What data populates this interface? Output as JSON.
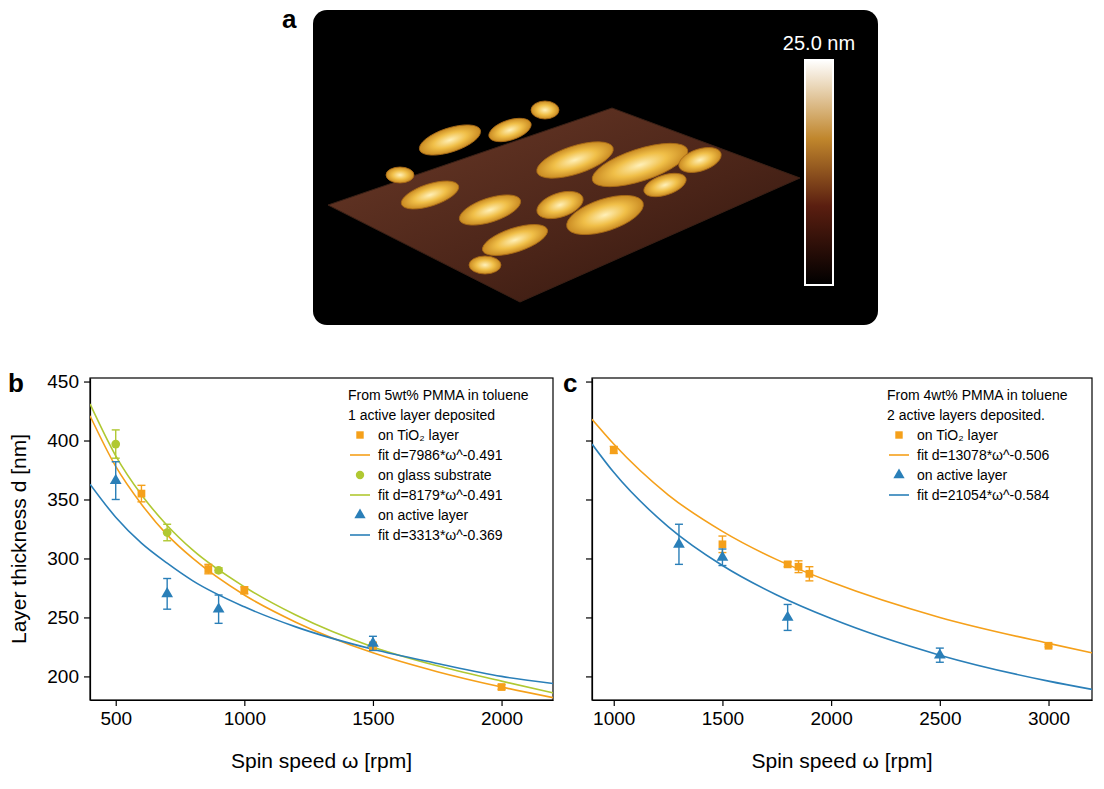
{
  "image": {
    "panel": "a",
    "colorbar_label": "25.0 nm"
  },
  "chart_data": [
    {
      "type": "scatter",
      "panel": "b",
      "annotations": [
        "From 5wt% PMMA in toluene",
        "1 active layer deposited"
      ],
      "x_label": "Spin speed ω [rpm]",
      "y_label": "Layer thickness d [nm]",
      "xlim": [
        400,
        2200
      ],
      "ylim": [
        180,
        453
      ],
      "xticks": [
        500,
        1000,
        1500,
        2000
      ],
      "yticks": [
        200,
        250,
        300,
        350,
        400,
        450
      ],
      "legend": "upper right",
      "series": [
        {
          "name": "on TiO₂ layer",
          "color": "#f5a01a",
          "marker": "square",
          "x": [
            600,
            860,
            1000,
            1500,
            2000
          ],
          "values": [
            355,
            291,
            273,
            226,
            191
          ],
          "errors": [
            7,
            4,
            3,
            3,
            2
          ]
        },
        {
          "name": "fit d=7986*ω^-0.491",
          "color": "#f5a01a",
          "type": "line",
          "line_style": "solid",
          "x": [
            400,
            500,
            600,
            700,
            800,
            1000,
            1200,
            1500,
            1750,
            2000,
            2200
          ],
          "values": [
            421,
            378,
            346,
            320,
            300,
            269,
            246,
            220,
            204,
            191,
            182
          ]
        },
        {
          "name": "on glass substrate",
          "color": "#b0c832",
          "marker": "circle",
          "x": [
            500,
            700,
            900
          ],
          "values": [
            397,
            322,
            290
          ],
          "errors": [
            12,
            7,
            2
          ]
        },
        {
          "name": "fit d=8179*ω^-0.491",
          "color": "#b0c832",
          "type": "line",
          "line_style": "solid",
          "x": [
            400,
            500,
            600,
            700,
            800,
            1000,
            1200,
            1500,
            1750,
            2000,
            2200
          ],
          "values": [
            431,
            387,
            354,
            328,
            307,
            276,
            252,
            225,
            209,
            196,
            186
          ]
        },
        {
          "name": "on active layer",
          "color": "#2a7fb8",
          "marker": "triangle",
          "x": [
            500,
            700,
            900,
            1500
          ],
          "values": [
            366,
            270,
            257,
            228
          ],
          "errors": [
            16,
            13,
            12,
            6
          ]
        },
        {
          "name": "fit d=3313*ω^-0.369",
          "color": "#2a7fb8",
          "type": "line",
          "line_style": "solid",
          "x": [
            400,
            500,
            600,
            700,
            800,
            1000,
            1200,
            1500,
            1750,
            2000,
            2200
          ],
          "values": [
            363,
            335,
            313,
            296,
            281,
            259,
            242,
            223,
            211,
            200,
            194
          ]
        }
      ]
    },
    {
      "type": "scatter",
      "panel": "c",
      "annotations": [
        "From 4wt% PMMA in toluene",
        "2 active layers deposited."
      ],
      "x_label": "Spin speed ω [rpm]",
      "xlim": [
        900,
        3200
      ],
      "ylim": [
        180,
        453
      ],
      "xticks": [
        1000,
        1500,
        2000,
        2500,
        3000
      ],
      "yticks": [
        200,
        250,
        300,
        350,
        400,
        450
      ],
      "tick_labels": "x",
      "legend": "upper right",
      "series": [
        {
          "name": "on TiO₂ layer",
          "color": "#f5a01a",
          "marker": "square",
          "x": [
            1000,
            1500,
            1800,
            1850,
            1900,
            3000
          ],
          "values": [
            392,
            312,
            295,
            293,
            287,
            226
          ],
          "errors": [
            3,
            7,
            2,
            5,
            6,
            1
          ]
        },
        {
          "name": "fit d=13078*ω^-0.506",
          "color": "#f5a01a",
          "type": "line",
          "line_style": "solid",
          "x": [
            900,
            1000,
            1250,
            1500,
            1750,
            2000,
            2500,
            3000,
            3200
          ],
          "values": [
            418,
            397,
            354,
            323,
            299,
            280,
            250,
            228,
            220
          ]
        },
        {
          "name": "on active layer",
          "color": "#2a7fb8",
          "marker": "triangle",
          "x": [
            1300,
            1500,
            1800,
            2500
          ],
          "values": [
            312,
            301,
            250,
            218
          ],
          "errors": [
            17,
            7,
            11,
            6
          ]
        },
        {
          "name": "fit d=21054*ω^-0.584",
          "color": "#2a7fb8",
          "type": "line",
          "line_style": "solid",
          "x": [
            900,
            1000,
            1250,
            1500,
            1750,
            2000,
            2500,
            3000,
            3200
          ],
          "values": [
            397,
            373,
            327,
            294,
            269,
            249,
            218,
            196,
            189
          ]
        }
      ]
    }
  ]
}
